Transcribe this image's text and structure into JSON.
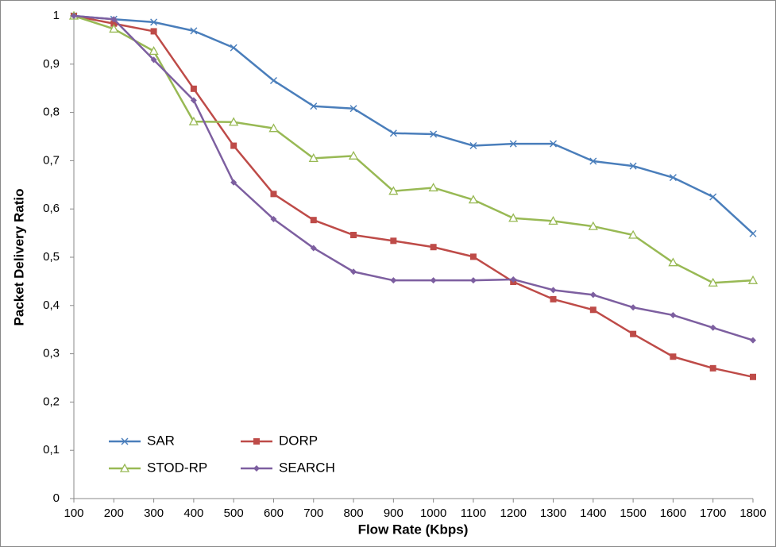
{
  "chart_data": {
    "type": "line",
    "x_label": "Flow Rate (Kbps)",
    "y_label": "Packet Delivery Ratio",
    "x": [
      100,
      200,
      300,
      400,
      500,
      600,
      700,
      800,
      900,
      1000,
      1100,
      1200,
      1300,
      1400,
      1500,
      1600,
      1700,
      1800
    ],
    "xlim": [
      100,
      1800
    ],
    "xticks": [
      100,
      200,
      300,
      400,
      500,
      600,
      700,
      800,
      900,
      1000,
      1100,
      1200,
      1300,
      1400,
      1500,
      1600,
      1700,
      1800
    ],
    "ylim": [
      0,
      1
    ],
    "yticks": [
      0,
      {
        "value": 0.1,
        "label": "0,1"
      },
      {
        "value": 0.2,
        "label": "0,2"
      },
      {
        "value": 0.3,
        "label": "0,3"
      },
      {
        "value": 0.4,
        "label": "0,4"
      },
      {
        "value": 0.5,
        "label": "0,5"
      },
      {
        "value": 0.6,
        "label": "0,6"
      },
      {
        "value": 0.7,
        "label": "0,7"
      },
      {
        "value": 0.8,
        "label": "0,8"
      },
      {
        "value": 0.9,
        "label": "0,9"
      },
      1
    ],
    "grid": false,
    "series": [
      {
        "name": "SAR",
        "color": "#4a7ebb",
        "marker": "x",
        "values": [
          1,
          0.993,
          0.987,
          0.969,
          0.934,
          0.866,
          0.813,
          0.808,
          0.757,
          0.755,
          0.731,
          0.735,
          0.735,
          0.699,
          0.689,
          0.665,
          0.625,
          0.549
        ]
      },
      {
        "name": "DORP",
        "color": "#be4b48",
        "marker": "square",
        "values": [
          1,
          0.984,
          0.968,
          0.849,
          0.731,
          0.631,
          0.577,
          0.546,
          0.534,
          0.521,
          0.501,
          0.449,
          0.413,
          0.391,
          0.341,
          0.294,
          0.27,
          0.252
        ]
      },
      {
        "name": "STOD-RP",
        "color": "#98b954",
        "marker": "triangle",
        "values": [
          1,
          0.973,
          0.927,
          0.781,
          0.78,
          0.767,
          0.705,
          0.71,
          0.637,
          0.644,
          0.619,
          0.581,
          0.575,
          0.564,
          0.546,
          0.489,
          0.447,
          0.452
        ]
      },
      {
        "name": "SEARCH",
        "color": "#7d5fa0",
        "marker": "diamond",
        "values": [
          1,
          0.993,
          0.909,
          0.825,
          0.655,
          0.579,
          0.519,
          0.47,
          0.452,
          0.452,
          0.452,
          0.454,
          0.432,
          0.422,
          0.396,
          0.38,
          0.354,
          0.328
        ]
      }
    ]
  }
}
